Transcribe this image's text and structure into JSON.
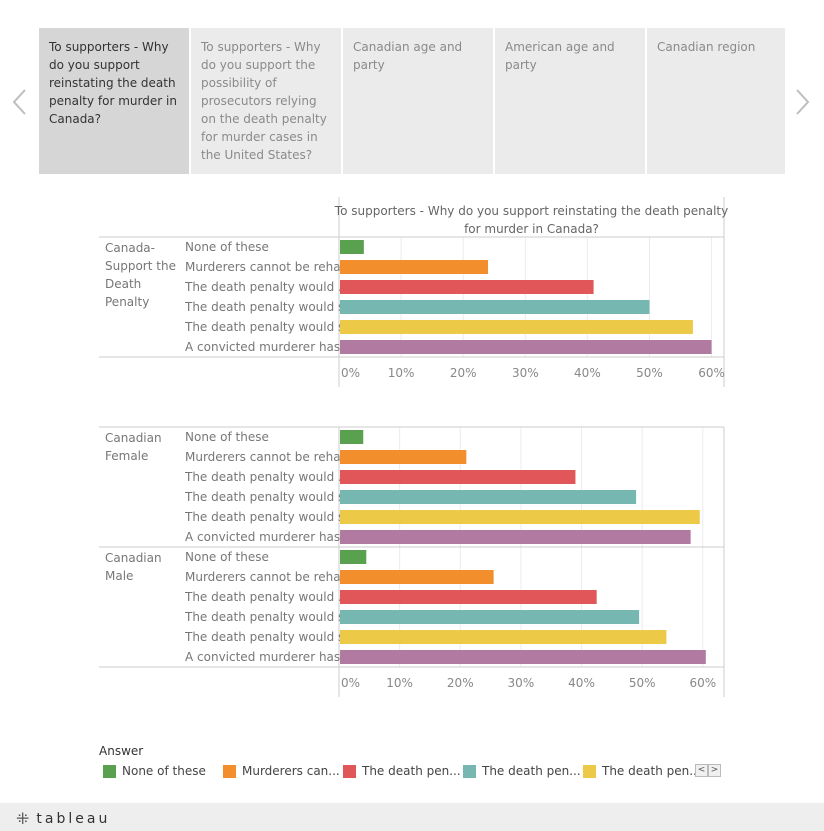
{
  "nav": {
    "prev_icon": "chevron-left-icon",
    "next_icon": "chevron-right-icon"
  },
  "tabs": [
    {
      "label": "To supporters - Why do you support reinstating the death penalty for murder in Canada?",
      "active": true
    },
    {
      "label": "To supporters - Why do you support the possibility of prosecutors relying on the death penalty for murder cases in the United States?",
      "active": false
    },
    {
      "label": "Canadian age and party",
      "active": false
    },
    {
      "label": "American age and party",
      "active": false
    },
    {
      "label": "Canadian region",
      "active": false
    }
  ],
  "chart_data": [
    {
      "type": "bar",
      "orientation": "horizontal",
      "title": "To supporters - Why do you support reinstating the death penalty for murder in Canada?",
      "categories": [
        "None of these",
        "Murderers cannot be reha..",
        "The death penalty would ..",
        "The death penalty would s..",
        "The death penalty would s..",
        "A convicted murderer has .."
      ],
      "panels": [
        {
          "label": "Canada-Support the Death Penalty",
          "values": [
            4,
            24,
            41,
            50,
            57,
            60
          ]
        }
      ],
      "xticks": [
        "0%",
        "10%",
        "20%",
        "30%",
        "40%",
        "50%",
        "60%"
      ],
      "xlim": [
        0,
        62
      ],
      "grid": true
    },
    {
      "type": "bar",
      "orientation": "horizontal",
      "title": "",
      "categories": [
        "None of these",
        "Murderers cannot be reha..",
        "The death penalty would ..",
        "The death penalty would s..",
        "The death penalty would s..",
        "A convicted murderer has .."
      ],
      "panels": [
        {
          "label": "Canadian Female",
          "values": [
            4,
            21,
            39,
            49,
            59.5,
            58
          ]
        },
        {
          "label": "Canadian Male",
          "values": [
            4.5,
            25.5,
            42.5,
            49.5,
            54,
            60.5
          ]
        }
      ],
      "xticks": [
        "0%",
        "10%",
        "20%",
        "30%",
        "40%",
        "50%",
        "60%"
      ],
      "xlim": [
        0,
        63.5
      ],
      "grid": true
    }
  ],
  "colors": [
    "#59a14f",
    "#f28e2b",
    "#e15759",
    "#76b7b2",
    "#edc948",
    "#b07aa1"
  ],
  "legend": {
    "title": "Answer",
    "items": [
      "None of these",
      "Murderers can...",
      "The death pen...",
      "The death pen...",
      "The death pen..."
    ],
    "prev": "<",
    "next": ">"
  },
  "footer": {
    "logo_text": "tableau",
    "logo_icon": "tableau-logo-icon"
  }
}
